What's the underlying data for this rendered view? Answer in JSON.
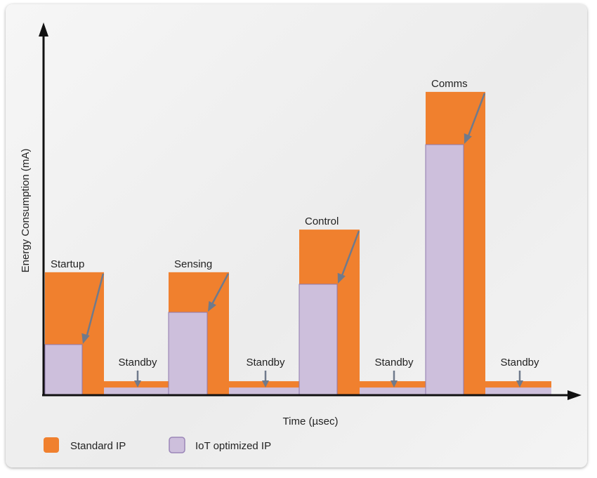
{
  "chart_data": {
    "type": "bar",
    "title": "",
    "xlabel": "Time (µsec)",
    "ylabel": "Energy Consumption (mA)",
    "units_note": "relative (0-100 of axis height)",
    "categories": [
      "Startup",
      "Standby",
      "Sensing",
      "Standby",
      "Control",
      "Standby",
      "Comms",
      "Standby"
    ],
    "series": [
      {
        "name": "Standard IP",
        "color": "#f0802e",
        "values": [
          38.7,
          4.2,
          38.7,
          4.2,
          52.2,
          4.2,
          95.8,
          4.2
        ]
      },
      {
        "name": "IoT optimized IP",
        "color": "#cdbfdc",
        "values": [
          15.8,
          2.2,
          26.0,
          2.2,
          34.9,
          2.2,
          79.1,
          2.2
        ]
      }
    ],
    "ylim": [
      0,
      116
    ],
    "grid": false,
    "legend": "bottom-left",
    "legend_entries": [
      "Standard IP",
      "IoT optimized IP"
    ]
  }
}
